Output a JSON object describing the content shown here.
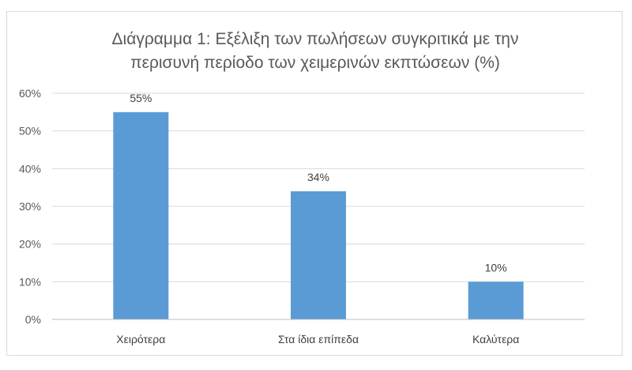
{
  "chart_data": {
    "type": "bar",
    "title_line1": "Διάγραμμα 1: Εξέλιξη των πωλήσεων συγκριτικά με την",
    "title_line2": "περισυνή περίοδο των χειμερινών εκπτώσεων (%)",
    "categories": [
      "Χειρότερα",
      "Στα ίδια επίπεδα",
      "Καλύτερα"
    ],
    "values": [
      55,
      34,
      10
    ],
    "data_labels": [
      "55%",
      "34%",
      "10%"
    ],
    "ylim": [
      0,
      60
    ],
    "yticks": [
      0,
      10,
      20,
      30,
      40,
      50,
      60
    ],
    "ytick_labels": [
      "0%",
      "10%",
      "20%",
      "30%",
      "40%",
      "50%",
      "60%"
    ],
    "grid": true,
    "legend": "none",
    "bar_color": "#5b9bd5",
    "grid_color": "#d9d9d9"
  }
}
